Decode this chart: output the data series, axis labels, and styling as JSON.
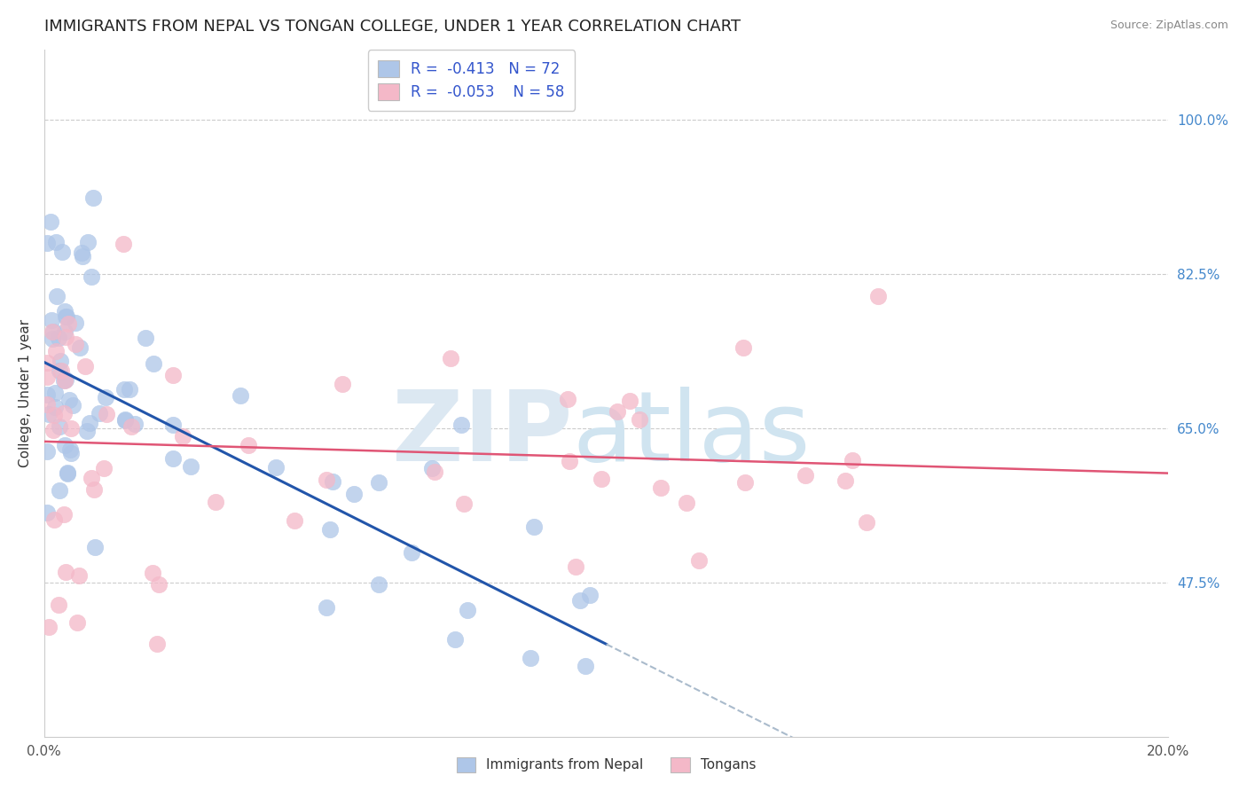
{
  "title": "IMMIGRANTS FROM NEPAL VS TONGAN COLLEGE, UNDER 1 YEAR CORRELATION CHART",
  "source": "Source: ZipAtlas.com",
  "ylabel": "College, Under 1 year",
  "right_yticks": [
    47.5,
    65.0,
    82.5,
    100.0
  ],
  "right_ytick_labels": [
    "47.5%",
    "65.0%",
    "82.5%",
    "100.0%"
  ],
  "xlim": [
    0.0,
    20.0
  ],
  "ylim": [
    30.0,
    108.0
  ],
  "nepal_R": -0.413,
  "nepal_N": 72,
  "tongan_R": -0.053,
  "tongan_N": 58,
  "nepal_color": "#aec6e8",
  "tongan_color": "#f4b8c8",
  "nepal_line_color": "#2255aa",
  "tongan_line_color": "#e05575",
  "legend_text_color": "#3355cc",
  "background_color": "#ffffff",
  "title_fontsize": 13,
  "right_label_color": "#4488cc",
  "nepal_intercept": 72.5,
  "nepal_slope": -3.2,
  "tongan_intercept": 63.5,
  "tongan_slope": -0.18,
  "nepal_max_x": 10.0,
  "tongan_max_x": 15.0
}
